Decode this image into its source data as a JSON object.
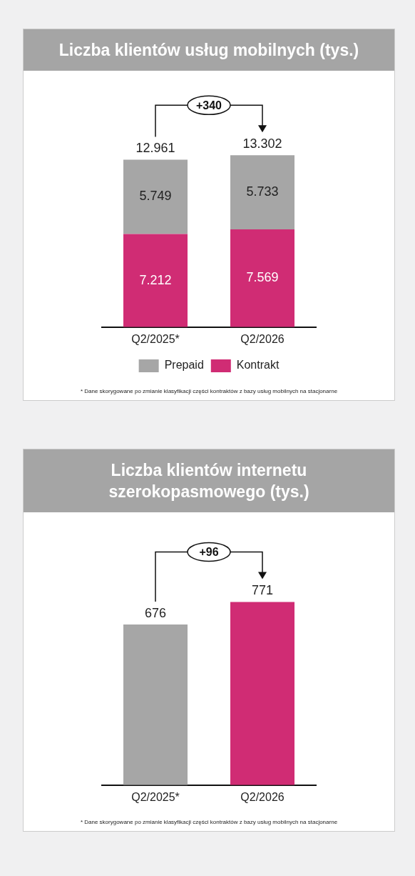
{
  "chart_data": [
    {
      "type": "bar",
      "title": "Liczba klientów usług mobilnych (tys.)",
      "categories": [
        "Q2/2025*",
        "Q2/2026"
      ],
      "stacked": true,
      "series": [
        {
          "name": "Kontrakt",
          "color": "#d02c74",
          "values": [
            7212,
            7569
          ],
          "value_labels": [
            "7.212",
            "7.569"
          ]
        },
        {
          "name": "Prepaid",
          "color": "#a6a6a6",
          "values": [
            5749,
            5733
          ],
          "value_labels": [
            "5.749",
            "5.733"
          ]
        }
      ],
      "totals": [
        "12.961",
        "13.302"
      ],
      "legend": "bottom",
      "annotations": [
        "+340",
        "* Dane skorygowane po zmianie klasyfikacji części kontraktów z bazy usług mobilnych na stacjonarne"
      ]
    },
    {
      "type": "bar",
      "title": "Liczba klientów internetu szerokopasmowego (tys.)",
      "categories": [
        "Q2/2025*",
        "Q2/2026"
      ],
      "values": [
        676,
        771
      ],
      "colors": [
        "#a6a6a6",
        "#d02c74"
      ],
      "data_labels": true,
      "annotations": [
        "+96",
        "* Dane skorygowane po zmianie klasyfikacji części kontraktów z bazy usług mobilnych na stacjonarne"
      ]
    }
  ]
}
